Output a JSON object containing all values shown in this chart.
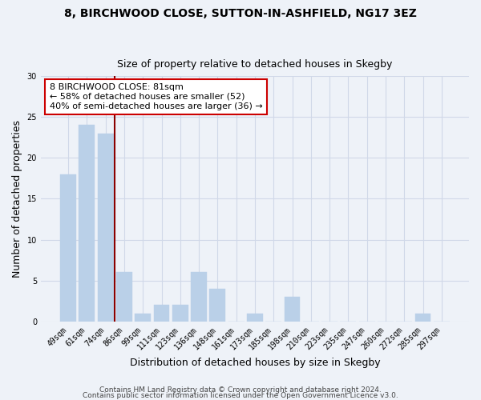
{
  "title_line1": "8, BIRCHWOOD CLOSE, SUTTON-IN-ASHFIELD, NG17 3EZ",
  "title_line2": "Size of property relative to detached houses in Skegby",
  "xlabel": "Distribution of detached houses by size in Skegby",
  "ylabel": "Number of detached properties",
  "categories": [
    "49sqm",
    "61sqm",
    "74sqm",
    "86sqm",
    "99sqm",
    "111sqm",
    "123sqm",
    "136sqm",
    "148sqm",
    "161sqm",
    "173sqm",
    "185sqm",
    "198sqm",
    "210sqm",
    "223sqm",
    "235sqm",
    "247sqm",
    "260sqm",
    "272sqm",
    "285sqm",
    "297sqm"
  ],
  "values": [
    18,
    24,
    23,
    6,
    1,
    2,
    2,
    6,
    4,
    0,
    1,
    0,
    3,
    0,
    0,
    0,
    0,
    0,
    0,
    1,
    0
  ],
  "bar_color": "#bad0e8",
  "vline_x_index": 2.5,
  "vline_color": "#8b0000",
  "ylim": [
    0,
    30
  ],
  "yticks": [
    0,
    5,
    10,
    15,
    20,
    25,
    30
  ],
  "annotation_text": "8 BIRCHWOOD CLOSE: 81sqm\n← 58% of detached houses are smaller (52)\n40% of semi-detached houses are larger (36) →",
  "annotation_box_facecolor": "#ffffff",
  "annotation_box_edgecolor": "#cc0000",
  "footer_line1": "Contains HM Land Registry data © Crown copyright and database right 2024.",
  "footer_line2": "Contains public sector information licensed under the Open Government Licence v3.0.",
  "background_color": "#eef2f8",
  "grid_color": "#d0d8e8",
  "title_fontsize": 10,
  "subtitle_fontsize": 9,
  "axis_label_fontsize": 9,
  "tick_fontsize": 7,
  "annotation_fontsize": 8,
  "footer_fontsize": 6.5
}
